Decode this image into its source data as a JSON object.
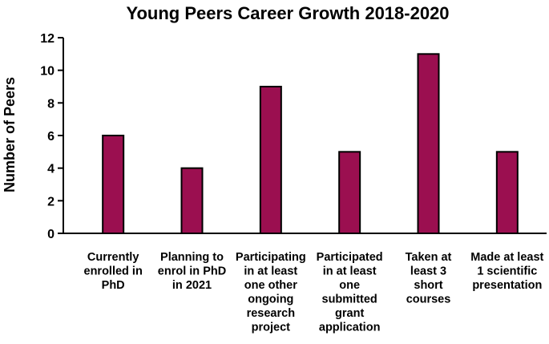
{
  "chart_data": {
    "type": "bar",
    "title": "Young Peers Career Growth 2018-2020",
    "ylabel": "Number of Peers",
    "xlabel": "",
    "ylim": [
      0,
      12
    ],
    "yticks": [
      0,
      2,
      4,
      6,
      8,
      10,
      12
    ],
    "bar_color": "#9b0f50",
    "grid": false,
    "categories": [
      [
        "Currently",
        "enrolled in",
        "PhD"
      ],
      [
        "Planning to",
        "enrol in PhD",
        "in 2021"
      ],
      [
        "Participating",
        "in at least",
        "one other",
        "ongoing",
        "research",
        "project"
      ],
      [
        "Participated",
        "in at least",
        "one",
        "submitted",
        "grant",
        "application"
      ],
      [
        "Taken at",
        "least 3",
        "short",
        "courses"
      ],
      [
        "Made at least",
        "1 scientific",
        "presentation"
      ]
    ],
    "values": [
      6,
      4,
      9,
      5,
      11,
      5
    ]
  }
}
